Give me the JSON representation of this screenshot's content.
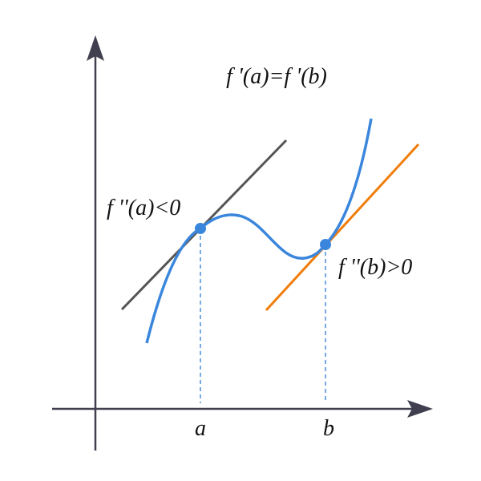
{
  "title": "f '(a)=f '(b)",
  "labels": {
    "point_a": "f ''(a)<0",
    "point_b": "f ''(b)>0",
    "tick_a": "a",
    "tick_b": "b"
  }
}
